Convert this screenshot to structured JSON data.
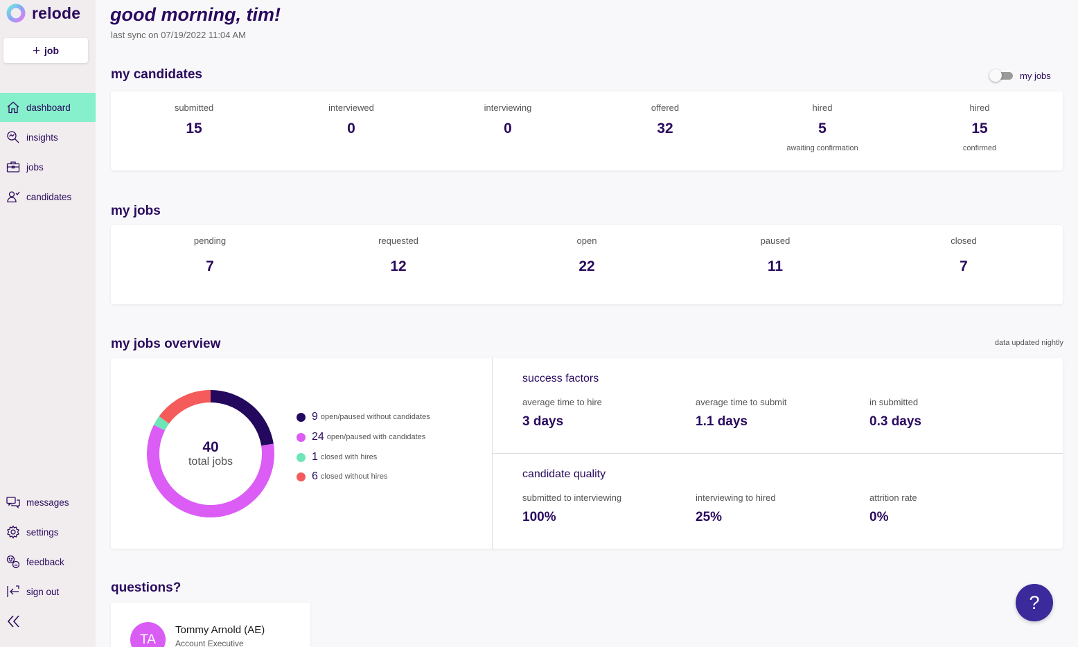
{
  "app": {
    "name": "relode"
  },
  "sidebar": {
    "add_job_label": "job",
    "nav": [
      {
        "label": "dashboard",
        "icon": "home-icon",
        "active": true
      },
      {
        "label": "insights",
        "icon": "insights-icon"
      },
      {
        "label": "jobs",
        "icon": "briefcase-icon"
      },
      {
        "label": "candidates",
        "icon": "candidate-icon"
      }
    ],
    "bottom_nav": [
      {
        "label": "messages",
        "icon": "messages-icon"
      },
      {
        "label": "settings",
        "icon": "gear-icon"
      },
      {
        "label": "feedback",
        "icon": "feedback-icon"
      },
      {
        "label": "sign out",
        "icon": "sign-out-icon"
      }
    ]
  },
  "header": {
    "greeting": "good morning, tim!",
    "sync": "last sync on 07/19/2022 11:04 AM"
  },
  "candidates": {
    "title": "my candidates",
    "toggle_label": "my jobs",
    "toggle_on": false,
    "stats": [
      {
        "label": "submitted",
        "value": "15",
        "sub": ""
      },
      {
        "label": "interviewed",
        "value": "0",
        "sub": ""
      },
      {
        "label": "interviewing",
        "value": "0",
        "sub": ""
      },
      {
        "label": "offered",
        "value": "32",
        "sub": ""
      },
      {
        "label": "hired",
        "value": "5",
        "sub": "awaiting confirmation"
      },
      {
        "label": "hired",
        "value": "15",
        "sub": "confirmed"
      }
    ]
  },
  "jobs": {
    "title": "my jobs",
    "stats": [
      {
        "label": "pending",
        "value": "7"
      },
      {
        "label": "requested",
        "value": "12"
      },
      {
        "label": "open",
        "value": "22"
      },
      {
        "label": "paused",
        "value": "11"
      },
      {
        "label": "closed",
        "value": "7"
      }
    ]
  },
  "overview": {
    "title": "my jobs overview",
    "updated": "data updated nightly",
    "total_value": "40",
    "total_label": "total jobs",
    "colors": {
      "open_without": "#24085e",
      "open_with": "#dc5cf6",
      "closed_with": "#6ee5b6",
      "closed_without": "#f55b5b"
    },
    "legend": [
      {
        "value": 9,
        "label": "open/paused without candidates",
        "color": "#24085e"
      },
      {
        "value": 24,
        "label": "open/paused with candidates",
        "color": "#dc5cf6"
      },
      {
        "value": 1,
        "label": "closed with hires",
        "color": "#6ee5b6"
      },
      {
        "value": 6,
        "label": "closed without hires",
        "color": "#f55b5b"
      }
    ],
    "success_factors": {
      "title": "success factors",
      "metrics": [
        {
          "label": "average time to hire",
          "value": "3 days"
        },
        {
          "label": "average time to submit",
          "value": "1.1 days"
        },
        {
          "label": "in submitted",
          "value": "0.3 days"
        }
      ]
    },
    "candidate_quality": {
      "title": "candidate quality",
      "metrics": [
        {
          "label": "submitted to interviewing",
          "value": "100%"
        },
        {
          "label": "interviewing to hired",
          "value": "25%"
        },
        {
          "label": "attrition rate",
          "value": "0%"
        }
      ]
    }
  },
  "questions": {
    "title": "questions?",
    "contact_initials": "TA",
    "contact_name": "Tommy Arnold (AE)",
    "contact_role": "Account Executive"
  },
  "help": {
    "label": "?"
  }
}
